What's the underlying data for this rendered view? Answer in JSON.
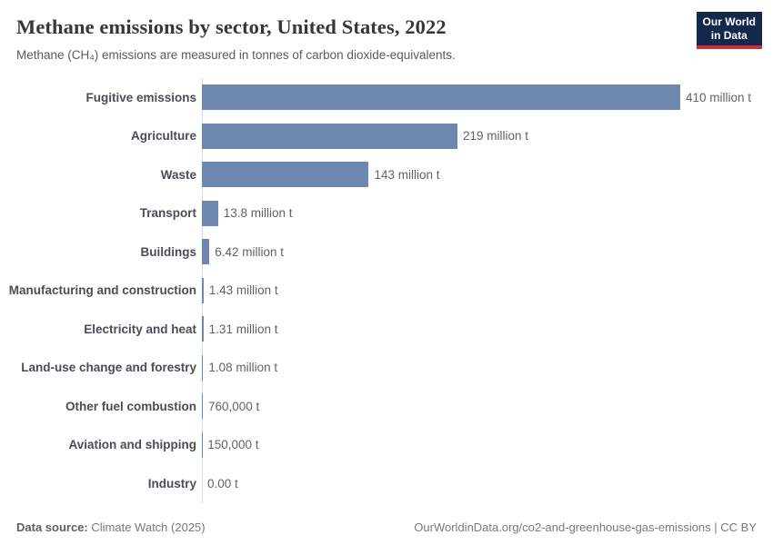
{
  "header": {
    "logo": {
      "line1": "Our World",
      "line2": "in Data",
      "bg_color": "#12294b",
      "accent_color": "#c5303e"
    }
  },
  "chart_data": {
    "type": "bar",
    "orientation": "horizontal",
    "title": "Methane emissions by sector, United States, 2022",
    "subtitle": "Methane (CH₄) emissions are measured in tonnes of carbon dioxide-equivalents.",
    "categories": [
      "Fugitive emissions",
      "Agriculture",
      "Waste",
      "Transport",
      "Buildings",
      "Manufacturing and construction",
      "Electricity and heat",
      "Land-use change and forestry",
      "Other fuel combustion",
      "Aviation and shipping",
      "Industry"
    ],
    "values": [
      410,
      219,
      143,
      13.8,
      6.42,
      1.43,
      1.31,
      1.08,
      0.76,
      0.15,
      0
    ],
    "value_labels": [
      "410 million t",
      "219 million t",
      "143 million t",
      "13.8 million t",
      "6.42 million t",
      "1.43 million t",
      "1.31 million t",
      "1.08 million t",
      "760,000 t",
      "150,000 t",
      "0.00 t"
    ],
    "unit": "tonnes of carbon dioxide-equivalents",
    "xlim": [
      0,
      410
    ],
    "grid": false,
    "legend": "none",
    "bar_color": "#6e87ae",
    "axis_color": "#dbdbdb"
  },
  "footer": {
    "datasource_label": "Data source:",
    "datasource_value": "Climate Watch (2025)",
    "link": "OurWorldinData.org/co2-and-greenhouse-gas-emissions | CC BY"
  }
}
